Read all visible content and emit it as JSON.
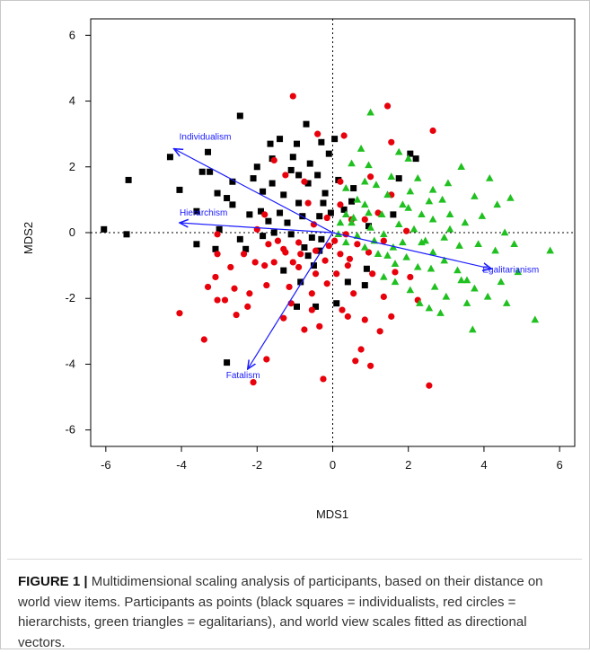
{
  "chart_data": {
    "type": "scatter",
    "xlabel": "MDS1",
    "ylabel": "MDS2",
    "xlim": [
      -6.4,
      6.4
    ],
    "ylim": [
      -6.5,
      6.5
    ],
    "xticks": [
      -6,
      -4,
      -2,
      0,
      2,
      4,
      6
    ],
    "yticks": [
      -6,
      -4,
      -2,
      0,
      2,
      4,
      6
    ],
    "xtick_labels": [
      "-6",
      "-4",
      "-2",
      "0",
      "2",
      "4",
      "6"
    ],
    "ytick_labels": [
      "-6",
      "-4",
      "-2",
      "0",
      "2",
      "4",
      "6"
    ],
    "reference_lines": {
      "x": 0,
      "y": 0,
      "style": "dotted"
    },
    "grid": false,
    "colors": {
      "individualists": "#000000",
      "hierarchists": "#e8000b",
      "egalitarians": "#1fc01f",
      "vectors": "#1a1aff"
    },
    "series": [
      {
        "name": "individualists",
        "marker": "square",
        "points": [
          [
            -6.05,
            0.1
          ],
          [
            -5.45,
            -0.05
          ],
          [
            -5.4,
            1.6
          ],
          [
            -4.3,
            2.3
          ],
          [
            -4.05,
            1.3
          ],
          [
            -3.45,
            1.85
          ],
          [
            -3.3,
            2.45
          ],
          [
            -3.25,
            1.85
          ],
          [
            -3.05,
            1.2
          ],
          [
            -3.6,
            0.65
          ],
          [
            -3.6,
            -0.35
          ],
          [
            -3.1,
            -0.5
          ],
          [
            -2.8,
            1.05
          ],
          [
            -2.65,
            1.55
          ],
          [
            -2.45,
            3.55
          ],
          [
            -2.65,
            0.85
          ],
          [
            -2.1,
            1.65
          ],
          [
            -1.85,
            1.25
          ],
          [
            -2.0,
            2.0
          ],
          [
            -1.9,
            0.65
          ],
          [
            -1.85,
            -0.1
          ],
          [
            -1.6,
            2.25
          ],
          [
            -1.65,
            2.7
          ],
          [
            -1.6,
            1.5
          ],
          [
            -1.4,
            2.85
          ],
          [
            -1.4,
            0.6
          ],
          [
            -1.3,
            1.15
          ],
          [
            -1.2,
            0.3
          ],
          [
            -1.1,
            1.9
          ],
          [
            -1.05,
            2.3
          ],
          [
            -0.95,
            2.7
          ],
          [
            -0.9,
            1.75
          ],
          [
            -0.9,
            0.9
          ],
          [
            -0.8,
            0.5
          ],
          [
            -0.7,
            3.3
          ],
          [
            -0.65,
            1.5
          ],
          [
            -0.6,
            2.1
          ],
          [
            -0.55,
            -0.15
          ],
          [
            -0.5,
            -1.0
          ],
          [
            -0.4,
            1.75
          ],
          [
            -0.35,
            0.5
          ],
          [
            -0.3,
            2.75
          ],
          [
            -0.25,
            0.9
          ],
          [
            -0.2,
            1.2
          ],
          [
            -0.1,
            2.4
          ],
          [
            0.05,
            2.85
          ],
          [
            0.15,
            1.6
          ],
          [
            0.1,
            -2.15
          ],
          [
            -0.45,
            -2.25
          ],
          [
            -0.85,
            -1.5
          ],
          [
            -0.95,
            -2.25
          ],
          [
            -1.3,
            -1.15
          ],
          [
            -2.8,
            -3.95
          ],
          [
            -2.45,
            -0.2
          ],
          [
            -2.3,
            -0.5
          ],
          [
            -1.55,
            0.0
          ],
          [
            -0.65,
            -0.7
          ],
          [
            0.4,
            -1.5
          ],
          [
            0.5,
            0.95
          ],
          [
            0.55,
            1.35
          ],
          [
            0.3,
            0.7
          ],
          [
            1.6,
            0.55
          ],
          [
            1.75,
            1.65
          ],
          [
            2.05,
            2.4
          ],
          [
            2.2,
            2.25
          ],
          [
            0.9,
            -1.1
          ],
          [
            0.85,
            -1.6
          ],
          [
            -0.35,
            -0.55
          ],
          [
            -1.1,
            -0.05
          ],
          [
            -0.05,
            0.6
          ],
          [
            -0.3,
            -0.2
          ],
          [
            -0.75,
            -0.45
          ],
          [
            0.95,
            0.2
          ],
          [
            -1.7,
            0.35
          ],
          [
            -3.0,
            0.1
          ],
          [
            -2.2,
            0.55
          ]
        ]
      },
      {
        "name": "hierarchists",
        "marker": "circle",
        "points": [
          [
            -1.05,
            4.15
          ],
          [
            1.45,
            3.85
          ],
          [
            2.65,
            3.1
          ],
          [
            1.55,
            2.75
          ],
          [
            -4.05,
            -2.45
          ],
          [
            -3.4,
            -3.25
          ],
          [
            -3.05,
            -2.05
          ],
          [
            -2.85,
            -2.05
          ],
          [
            -2.6,
            -1.7
          ],
          [
            -2.55,
            -2.5
          ],
          [
            -3.05,
            -0.05
          ],
          [
            -3.05,
            -0.65
          ],
          [
            -3.1,
            -1.35
          ],
          [
            -2.7,
            -1.05
          ],
          [
            -2.35,
            -0.65
          ],
          [
            -2.2,
            -1.85
          ],
          [
            -2.25,
            -2.25
          ],
          [
            -2.05,
            -0.9
          ],
          [
            -1.8,
            0.55
          ],
          [
            -1.7,
            -0.35
          ],
          [
            -1.75,
            -1.6
          ],
          [
            -1.75,
            -3.85
          ],
          [
            -1.55,
            -0.9
          ],
          [
            -1.3,
            -0.5
          ],
          [
            -1.3,
            -2.6
          ],
          [
            -1.15,
            -1.65
          ],
          [
            -1.1,
            -2.15
          ],
          [
            -1.05,
            -0.9
          ],
          [
            -0.9,
            -0.3
          ],
          [
            -0.85,
            -0.65
          ],
          [
            -0.75,
            -2.95
          ],
          [
            -0.75,
            1.55
          ],
          [
            -0.55,
            -1.85
          ],
          [
            -0.5,
            0.25
          ],
          [
            -0.45,
            -0.55
          ],
          [
            -0.45,
            -1.25
          ],
          [
            -0.35,
            -2.85
          ],
          [
            -0.2,
            -0.85
          ],
          [
            -0.15,
            -1.55
          ],
          [
            -0.1,
            -0.4
          ],
          [
            0.05,
            -0.25
          ],
          [
            0.1,
            -1.25
          ],
          [
            0.2,
            -0.65
          ],
          [
            0.2,
            0.85
          ],
          [
            0.25,
            -2.35
          ],
          [
            0.3,
            2.95
          ],
          [
            0.35,
            -0.05
          ],
          [
            0.45,
            -0.8
          ],
          [
            0.55,
            -1.85
          ],
          [
            0.65,
            -0.35
          ],
          [
            0.75,
            -3.55
          ],
          [
            0.85,
            -2.65
          ],
          [
            1.0,
            -4.05
          ],
          [
            1.05,
            -1.25
          ],
          [
            1.25,
            -3.0
          ],
          [
            1.35,
            -1.95
          ],
          [
            1.55,
            -2.55
          ],
          [
            1.65,
            -1.2
          ],
          [
            2.05,
            -1.35
          ],
          [
            2.25,
            -2.05
          ],
          [
            2.55,
            -4.65
          ],
          [
            1.95,
            0.05
          ],
          [
            1.55,
            1.15
          ],
          [
            1.35,
            -0.25
          ],
          [
            1.2,
            0.6
          ],
          [
            0.6,
            -3.9
          ],
          [
            0.4,
            -2.55
          ],
          [
            -0.25,
            -4.45
          ],
          [
            -2.1,
            -4.55
          ],
          [
            -1.45,
            -0.25
          ],
          [
            -1.8,
            -1.0
          ],
          [
            -0.65,
            0.9
          ],
          [
            -0.55,
            -2.35
          ],
          [
            -1.25,
            1.75
          ],
          [
            -1.55,
            2.2
          ],
          [
            -0.4,
            3.0
          ],
          [
            0.2,
            1.55
          ],
          [
            1.0,
            1.7
          ],
          [
            0.5,
            0.4
          ],
          [
            -0.15,
            0.45
          ],
          [
            -0.9,
            -1.05
          ],
          [
            -3.3,
            -1.65
          ],
          [
            -1.25,
            -0.6
          ],
          [
            0.95,
            -0.6
          ],
          [
            0.4,
            -1.0
          ],
          [
            0.85,
            0.4
          ],
          [
            -2.0,
            0.1
          ]
        ]
      },
      {
        "name": "egalitarians",
        "marker": "triangle",
        "points": [
          [
            1.0,
            3.65
          ],
          [
            1.75,
            2.45
          ],
          [
            2.0,
            2.25
          ],
          [
            3.4,
            2.0
          ],
          [
            4.15,
            1.65
          ],
          [
            4.7,
            1.05
          ],
          [
            3.05,
            1.5
          ],
          [
            2.65,
            1.3
          ],
          [
            2.25,
            1.65
          ],
          [
            2.55,
            0.95
          ],
          [
            3.75,
            1.1
          ],
          [
            4.35,
            0.85
          ],
          [
            1.55,
            1.7
          ],
          [
            1.15,
            1.45
          ],
          [
            0.85,
            1.55
          ],
          [
            0.95,
            2.05
          ],
          [
            0.75,
            2.55
          ],
          [
            0.5,
            2.1
          ],
          [
            0.35,
            1.35
          ],
          [
            1.45,
            1.15
          ],
          [
            1.3,
            0.55
          ],
          [
            2.0,
            0.75
          ],
          [
            2.35,
            0.55
          ],
          [
            2.65,
            0.4
          ],
          [
            3.1,
            0.55
          ],
          [
            3.5,
            0.3
          ],
          [
            3.95,
            0.5
          ],
          [
            4.55,
            0.0
          ],
          [
            4.8,
            -0.35
          ],
          [
            5.75,
            -0.55
          ],
          [
            4.3,
            -0.55
          ],
          [
            3.85,
            -0.35
          ],
          [
            3.35,
            -0.4
          ],
          [
            2.95,
            -0.15
          ],
          [
            2.65,
            -0.6
          ],
          [
            2.35,
            -0.3
          ],
          [
            2.15,
            0.1
          ],
          [
            1.85,
            -0.3
          ],
          [
            1.6,
            -0.45
          ],
          [
            1.35,
            -0.05
          ],
          [
            1.1,
            -0.25
          ],
          [
            0.85,
            -0.45
          ],
          [
            0.65,
            -0.1
          ],
          [
            0.5,
            0.3
          ],
          [
            0.35,
            0.55
          ],
          [
            0.2,
            0.3
          ],
          [
            0.15,
            -0.05
          ],
          [
            0.55,
            0.45
          ],
          [
            0.85,
            0.85
          ],
          [
            1.0,
            0.15
          ],
          [
            1.2,
            -0.65
          ],
          [
            1.45,
            -0.7
          ],
          [
            1.65,
            -0.95
          ],
          [
            1.95,
            -0.75
          ],
          [
            2.25,
            -1.05
          ],
          [
            2.6,
            -1.1
          ],
          [
            2.95,
            -0.85
          ],
          [
            3.3,
            -1.15
          ],
          [
            3.55,
            -1.45
          ],
          [
            3.4,
            -1.45
          ],
          [
            3.75,
            -1.7
          ],
          [
            3.0,
            -1.95
          ],
          [
            2.55,
            -2.3
          ],
          [
            2.3,
            -2.15
          ],
          [
            2.85,
            -2.45
          ],
          [
            3.7,
            -2.95
          ],
          [
            4.1,
            -1.95
          ],
          [
            5.35,
            -2.65
          ],
          [
            4.45,
            -1.5
          ],
          [
            2.05,
            -1.75
          ],
          [
            1.65,
            -1.5
          ],
          [
            1.35,
            -1.35
          ],
          [
            2.7,
            -1.65
          ],
          [
            3.55,
            -2.15
          ],
          [
            4.6,
            -2.15
          ],
          [
            2.45,
            -0.25
          ],
          [
            1.75,
            0.25
          ],
          [
            0.95,
            0.6
          ],
          [
            3.1,
            0.1
          ],
          [
            2.05,
            1.25
          ],
          [
            0.65,
            1.0
          ],
          [
            1.85,
            0.85
          ],
          [
            0.35,
            -0.3
          ],
          [
            2.9,
            1.0
          ],
          [
            4.9,
            -1.2
          ]
        ]
      }
    ],
    "vectors": [
      {
        "label": "Individualism",
        "end": [
          -4.2,
          2.55
        ]
      },
      {
        "label": "Hierarchism",
        "end": [
          -4.05,
          0.3
        ]
      },
      {
        "label": "Egalitarianism",
        "end": [
          4.2,
          -1.1
        ]
      },
      {
        "label": "Fatalism",
        "end": [
          -2.25,
          -4.15
        ]
      }
    ]
  },
  "caption": {
    "label": "FIGURE 1",
    "separator": " | ",
    "text": "Multidimensional scaling analysis of participants, based on their distance on world view items. Participants as points (black squares = individualists, red circles = hierarchists, green triangles = egalitarians), and world view scales fitted as directional vectors."
  }
}
